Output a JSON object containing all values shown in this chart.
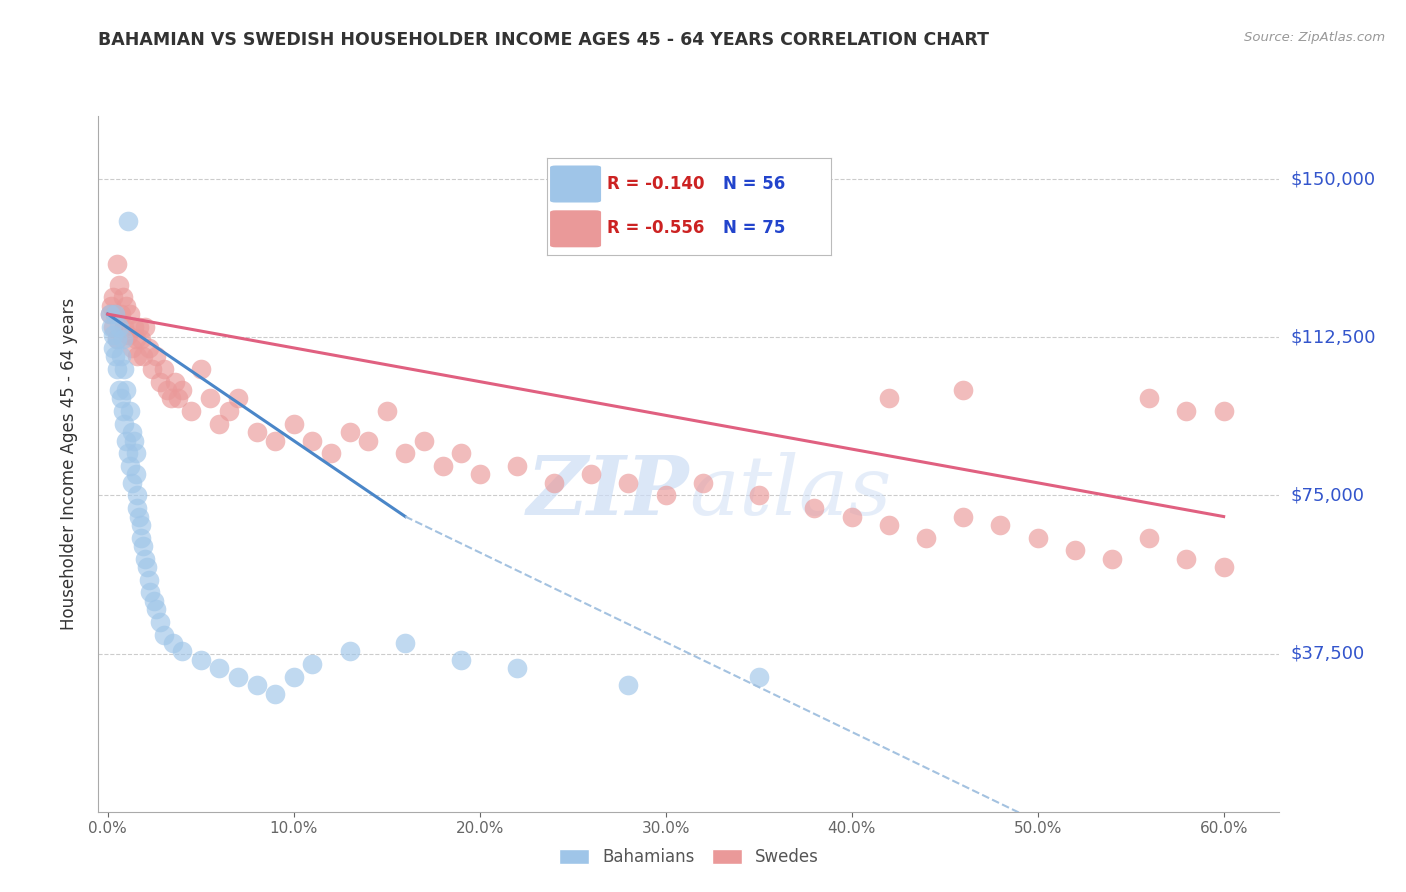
{
  "title": "BAHAMIAN VS SWEDISH HOUSEHOLDER INCOME AGES 45 - 64 YEARS CORRELATION CHART",
  "source": "Source: ZipAtlas.com",
  "ylabel": "Householder Income Ages 45 - 64 years",
  "xlabel_ticks": [
    "0.0%",
    "10.0%",
    "20.0%",
    "30.0%",
    "40.0%",
    "50.0%",
    "60.0%"
  ],
  "xlabel_vals": [
    0.0,
    0.1,
    0.2,
    0.3,
    0.4,
    0.5,
    0.6
  ],
  "ytick_labels": [
    "$37,500",
    "$75,000",
    "$112,500",
    "$150,000"
  ],
  "ytick_vals": [
    37500,
    75000,
    112500,
    150000
  ],
  "ymin": 0,
  "ymax": 165000,
  "xmin": -0.005,
  "xmax": 0.63,
  "legend_R_blue": "-0.140",
  "legend_N_blue": "56",
  "legend_R_pink": "-0.556",
  "legend_N_pink": "75",
  "blue_color": "#9fc5e8",
  "pink_color": "#ea9999",
  "trendline_blue_solid": "#4a86c8",
  "trendline_blue_dashed": "#a4c2e0",
  "trendline_pink": "#e06080",
  "watermark_color": "#ccddf5",
  "bahamian_x": [
    0.001,
    0.002,
    0.003,
    0.003,
    0.004,
    0.004,
    0.005,
    0.005,
    0.006,
    0.006,
    0.007,
    0.007,
    0.008,
    0.008,
    0.009,
    0.009,
    0.01,
    0.01,
    0.011,
    0.011,
    0.012,
    0.012,
    0.013,
    0.013,
    0.014,
    0.015,
    0.015,
    0.016,
    0.016,
    0.017,
    0.018,
    0.018,
    0.019,
    0.02,
    0.021,
    0.022,
    0.023,
    0.025,
    0.026,
    0.028,
    0.03,
    0.035,
    0.04,
    0.05,
    0.06,
    0.07,
    0.08,
    0.09,
    0.1,
    0.11,
    0.13,
    0.16,
    0.19,
    0.22,
    0.28,
    0.35
  ],
  "bahamian_y": [
    118000,
    115000,
    113000,
    110000,
    118000,
    108000,
    112000,
    105000,
    115000,
    100000,
    108000,
    98000,
    112000,
    95000,
    105000,
    92000,
    100000,
    88000,
    140000,
    85000,
    95000,
    82000,
    90000,
    78000,
    88000,
    85000,
    80000,
    75000,
    72000,
    70000,
    68000,
    65000,
    63000,
    60000,
    58000,
    55000,
    52000,
    50000,
    48000,
    45000,
    42000,
    40000,
    38000,
    36000,
    34000,
    32000,
    30000,
    28000,
    32000,
    35000,
    38000,
    40000,
    36000,
    34000,
    30000,
    32000
  ],
  "swedish_x": [
    0.001,
    0.002,
    0.003,
    0.003,
    0.004,
    0.005,
    0.005,
    0.006,
    0.007,
    0.008,
    0.009,
    0.01,
    0.011,
    0.012,
    0.013,
    0.014,
    0.015,
    0.016,
    0.017,
    0.018,
    0.019,
    0.02,
    0.022,
    0.024,
    0.026,
    0.028,
    0.03,
    0.032,
    0.034,
    0.036,
    0.038,
    0.04,
    0.045,
    0.05,
    0.055,
    0.06,
    0.065,
    0.07,
    0.08,
    0.09,
    0.1,
    0.11,
    0.12,
    0.13,
    0.14,
    0.15,
    0.16,
    0.17,
    0.18,
    0.19,
    0.2,
    0.22,
    0.24,
    0.26,
    0.28,
    0.3,
    0.32,
    0.35,
    0.38,
    0.4,
    0.42,
    0.44,
    0.46,
    0.48,
    0.5,
    0.52,
    0.54,
    0.56,
    0.58,
    0.6,
    0.42,
    0.46,
    0.56,
    0.58,
    0.6
  ],
  "swedish_y": [
    118000,
    120000,
    122000,
    115000,
    118000,
    130000,
    112000,
    125000,
    118000,
    122000,
    115000,
    120000,
    113000,
    118000,
    110000,
    115000,
    112000,
    108000,
    115000,
    112000,
    108000,
    115000,
    110000,
    105000,
    108000,
    102000,
    105000,
    100000,
    98000,
    102000,
    98000,
    100000,
    95000,
    105000,
    98000,
    92000,
    95000,
    98000,
    90000,
    88000,
    92000,
    88000,
    85000,
    90000,
    88000,
    95000,
    85000,
    88000,
    82000,
    85000,
    80000,
    82000,
    78000,
    80000,
    78000,
    75000,
    78000,
    75000,
    72000,
    70000,
    68000,
    65000,
    70000,
    68000,
    65000,
    62000,
    60000,
    65000,
    60000,
    58000,
    98000,
    100000,
    98000,
    95000,
    95000
  ]
}
